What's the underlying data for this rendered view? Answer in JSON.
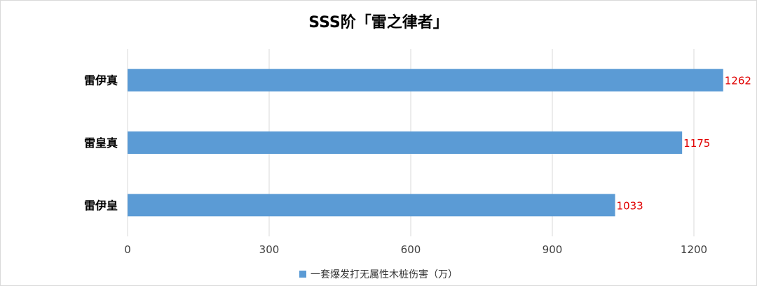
{
  "chart_data": {
    "type": "bar",
    "orientation": "horizontal",
    "title": "SSS阶「雷之律者」",
    "categories": [
      "雷伊真",
      "雷皇真",
      "雷伊皇"
    ],
    "series": [
      {
        "name": "一套爆发打无属性木桩伤害（万）",
        "values": [
          1262,
          1175,
          1033
        ]
      }
    ],
    "xlim": [
      0,
      1200
    ],
    "xticks": [
      0,
      300,
      600,
      900,
      1200
    ],
    "grid": true,
    "legend_position": "bottom",
    "bar_color": "#5b9bd5",
    "label_color": "#e00000"
  }
}
